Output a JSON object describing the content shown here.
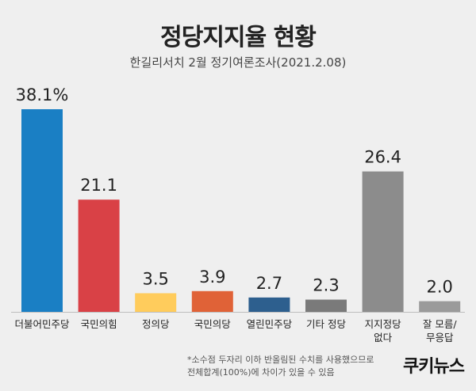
{
  "chart_data": {
    "type": "bar",
    "title": "정당지지율 현황",
    "subtitle": "한길리서치 2월 정기여론조사(2021.2.08)",
    "categories": [
      "더불어민주당",
      "국민의힘",
      "정의당",
      "국민의당",
      "열린민주당",
      "기타 정당",
      "지지정당 없다",
      "잘 모름/ 무응답"
    ],
    "category_lines": [
      [
        "더불어민주당"
      ],
      [
        "국민의힘"
      ],
      [
        "정의당"
      ],
      [
        "국민의당"
      ],
      [
        "열린민주당"
      ],
      [
        "기타 정당"
      ],
      [
        "지지정당",
        "없다"
      ],
      [
        "잘 모름/",
        "무응답"
      ]
    ],
    "values": [
      38.1,
      21.1,
      3.5,
      3.9,
      2.7,
      2.3,
      26.4,
      2.0
    ],
    "value_labels": [
      "38.1%",
      "21.1",
      "3.5",
      "3.9",
      "2.7",
      "2.3",
      "26.4",
      "2.0"
    ],
    "colors": [
      "#1a7fc4",
      "#d94146",
      "#ffcc5c",
      "#e06237",
      "#2d5f8e",
      "#7a7a7a",
      "#8c8c8c",
      "#9a9a9a"
    ],
    "ylim": [
      0,
      38.1
    ],
    "xlabel": "",
    "ylabel": "",
    "grid": false
  },
  "footnote": {
    "line1": "*소수점 두자리 이하 반올림된 수치를 사용했으므로",
    "line2": "전체합계(100%)에 차이가 있을 수 있음"
  },
  "brand": {
    "text": "쿠키뉴스"
  }
}
